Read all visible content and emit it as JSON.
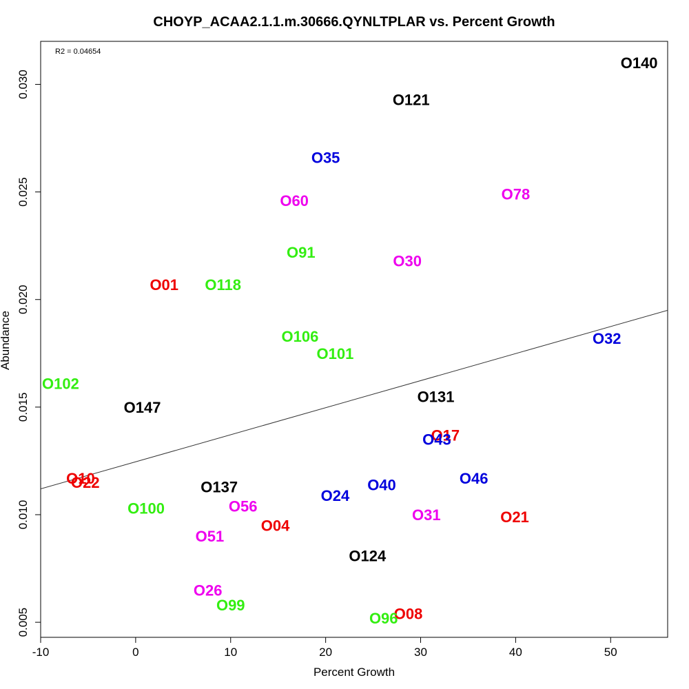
{
  "chart_data": {
    "type": "scatter",
    "title": "CHOYP_ACAA2.1.1.m.30666.QYNLTPLAR vs. Percent Growth",
    "xlabel": "Percent Growth",
    "ylabel": "Abundance",
    "r2_text": "R2 = 0.04654",
    "xlim": [
      -10,
      56
    ],
    "ylim": [
      0.0043,
      0.032
    ],
    "xticks": [
      {
        "value": -10,
        "label": "-10"
      },
      {
        "value": 0,
        "label": "0"
      },
      {
        "value": 10,
        "label": "10"
      },
      {
        "value": 20,
        "label": "20"
      },
      {
        "value": 30,
        "label": "30"
      },
      {
        "value": 40,
        "label": "40"
      },
      {
        "value": 50,
        "label": "50"
      }
    ],
    "yticks": [
      {
        "value": 0.005,
        "label": "0.005"
      },
      {
        "value": 0.01,
        "label": "0.010"
      },
      {
        "value": 0.015,
        "label": "0.015"
      },
      {
        "value": 0.02,
        "label": "0.020"
      },
      {
        "value": 0.025,
        "label": "0.025"
      },
      {
        "value": 0.03,
        "label": "0.030"
      }
    ],
    "regression_line": {
      "x": [
        -10,
        56
      ],
      "y": [
        0.0112,
        0.0195
      ]
    },
    "points": [
      {
        "label": "O140",
        "x": 53.0,
        "y": 0.031,
        "color": "#000000"
      },
      {
        "label": "O121",
        "x": 29.0,
        "y": 0.0293,
        "color": "#000000"
      },
      {
        "label": "O35",
        "x": 20.0,
        "y": 0.0266,
        "color": "#0000dd"
      },
      {
        "label": "O60",
        "x": 16.7,
        "y": 0.0246,
        "color": "#ee00ee"
      },
      {
        "label": "O78",
        "x": 40.0,
        "y": 0.0249,
        "color": "#ee00ee"
      },
      {
        "label": "O91",
        "x": 17.4,
        "y": 0.0222,
        "color": "#33ee11"
      },
      {
        "label": "O30",
        "x": 28.6,
        "y": 0.0218,
        "color": "#ee00ee"
      },
      {
        "label": "O01",
        "x": 3.0,
        "y": 0.0207,
        "color": "#ee0000"
      },
      {
        "label": "O118",
        "x": 9.2,
        "y": 0.0207,
        "color": "#33ee11"
      },
      {
        "label": "O106",
        "x": 17.3,
        "y": 0.0183,
        "color": "#33ee11"
      },
      {
        "label": "O101",
        "x": 21.0,
        "y": 0.0175,
        "color": "#33ee11"
      },
      {
        "label": "O32",
        "x": 49.6,
        "y": 0.0182,
        "color": "#0000dd"
      },
      {
        "label": "O102",
        "x": -7.9,
        "y": 0.0161,
        "color": "#33ee11"
      },
      {
        "label": "O131",
        "x": 31.6,
        "y": 0.0155,
        "color": "#000000"
      },
      {
        "label": "O147",
        "x": 0.7,
        "y": 0.015,
        "color": "#000000"
      },
      {
        "label": "O17",
        "x": 32.6,
        "y": 0.0137,
        "color": "#ee0000"
      },
      {
        "label": "O43",
        "x": 31.7,
        "y": 0.0135,
        "color": "#0000dd"
      },
      {
        "label": "O46",
        "x": 35.6,
        "y": 0.0117,
        "color": "#0000dd"
      },
      {
        "label": "O10",
        "x": -5.8,
        "y": 0.0117,
        "color": "#ee0000"
      },
      {
        "label": "O22",
        "x": -5.3,
        "y": 0.0115,
        "color": "#ee0000"
      },
      {
        "label": "O137",
        "x": 8.8,
        "y": 0.0113,
        "color": "#000000"
      },
      {
        "label": "O40",
        "x": 25.9,
        "y": 0.0114,
        "color": "#0000dd"
      },
      {
        "label": "O24",
        "x": 21.0,
        "y": 0.0109,
        "color": "#0000dd"
      },
      {
        "label": "O56",
        "x": 11.3,
        "y": 0.0104,
        "color": "#ee00ee"
      },
      {
        "label": "O100",
        "x": 1.1,
        "y": 0.0103,
        "color": "#33ee11"
      },
      {
        "label": "O31",
        "x": 30.6,
        "y": 0.01,
        "color": "#ee00ee"
      },
      {
        "label": "O21",
        "x": 39.9,
        "y": 0.0099,
        "color": "#ee0000"
      },
      {
        "label": "O04",
        "x": 14.7,
        "y": 0.0095,
        "color": "#ee0000"
      },
      {
        "label": "O51",
        "x": 7.8,
        "y": 0.009,
        "color": "#ee00ee"
      },
      {
        "label": "O124",
        "x": 24.4,
        "y": 0.0081,
        "color": "#000000"
      },
      {
        "label": "O26",
        "x": 7.6,
        "y": 0.0065,
        "color": "#ee00ee"
      },
      {
        "label": "O99",
        "x": 10.0,
        "y": 0.0058,
        "color": "#33ee11"
      },
      {
        "label": "O08",
        "x": 28.7,
        "y": 0.0054,
        "color": "#ee0000"
      },
      {
        "label": "O96",
        "x": 26.1,
        "y": 0.0052,
        "color": "#33ee11"
      }
    ]
  }
}
